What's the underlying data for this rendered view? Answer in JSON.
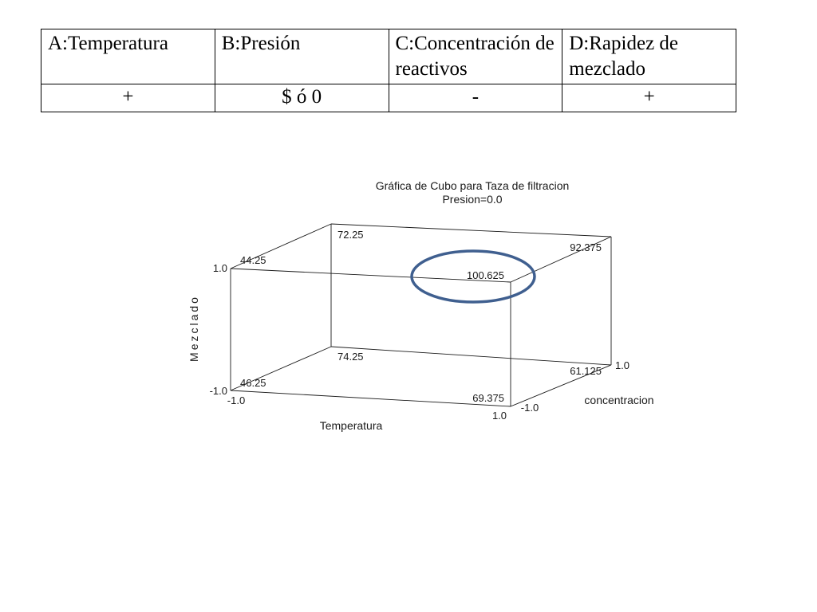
{
  "table": {
    "headers": [
      "A:Temperatura",
      "B:Presión",
      "C:Concentración de reactivos",
      "D:Rapidez de mezclado"
    ],
    "values": [
      "+",
      "$ ó 0",
      "-",
      "+"
    ]
  },
  "chart_data": {
    "type": "cube",
    "title": "Gráfica de Cubo para Taza de filtracion",
    "subtitle": "Presion=0.0",
    "axes": {
      "x": {
        "label": "Temperatura",
        "min_label": "-1.0",
        "max_label": "1.0"
      },
      "y": {
        "label": "Mezclado",
        "min_label": "-1.0",
        "max_label": "1.0"
      },
      "z": {
        "label": "concentracion",
        "min_label": "-1.0",
        "max_label": "1.0"
      }
    },
    "points": [
      {
        "temperatura": -1,
        "concentracion": -1,
        "mezclado": 1,
        "value": "44.25"
      },
      {
        "temperatura": -1,
        "concentracion": 1,
        "mezclado": 1,
        "value": "72.25"
      },
      {
        "temperatura": 1,
        "concentracion": 1,
        "mezclado": 1,
        "value": "92.375"
      },
      {
        "temperatura": 1,
        "concentracion": -1,
        "mezclado": 1,
        "value": "100.625"
      },
      {
        "temperatura": -1,
        "concentracion": -1,
        "mezclado": -1,
        "value": "46.25"
      },
      {
        "temperatura": -1,
        "concentracion": 1,
        "mezclado": -1,
        "value": "74.25"
      },
      {
        "temperatura": 1,
        "concentracion": 1,
        "mezclado": -1,
        "value": "61.125"
      },
      {
        "temperatura": 1,
        "concentracion": -1,
        "mezclado": -1,
        "value": "69.375"
      }
    ],
    "highlight": {
      "value": "100.625",
      "color": "#3f5f8f"
    },
    "line_color": "#1a1a1a"
  }
}
